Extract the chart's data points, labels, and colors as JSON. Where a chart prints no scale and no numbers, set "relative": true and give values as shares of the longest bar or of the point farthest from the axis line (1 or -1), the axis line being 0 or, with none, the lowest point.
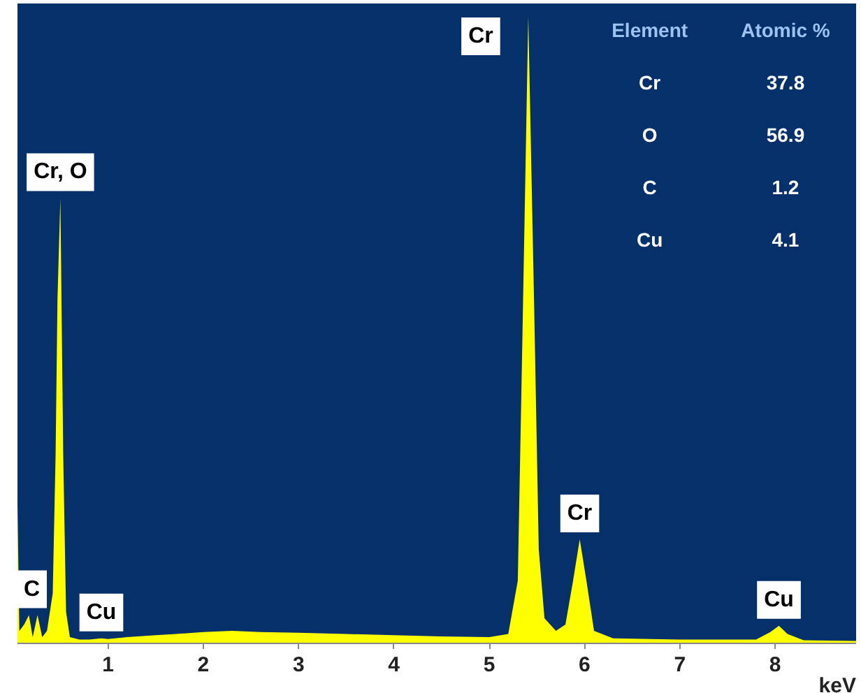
{
  "chart_data": {
    "type": "area",
    "relative": true,
    "xlabel": "keV",
    "color": "#ffff00",
    "x": [
      0.05,
      0.07,
      0.12,
      0.17,
      0.21,
      0.26,
      0.31,
      0.36,
      0.42,
      0.45,
      0.47,
      0.5,
      0.53,
      0.56,
      0.6,
      0.7,
      0.8,
      0.93,
      1.0,
      1.2,
      1.5,
      1.8,
      2.0,
      2.3,
      2.6,
      3.0,
      3.5,
      4.0,
      4.5,
      5.0,
      5.2,
      5.3,
      5.35,
      5.41,
      5.47,
      5.52,
      5.58,
      5.7,
      5.8,
      5.88,
      5.95,
      6.02,
      6.1,
      6.3,
      7.0,
      7.8,
      7.95,
      8.04,
      8.13,
      8.3,
      8.85
    ],
    "values": [
      0.22,
      0.02,
      0.03,
      0.045,
      0.01,
      0.045,
      0.01,
      0.02,
      0.08,
      0.3,
      0.55,
      0.71,
      0.3,
      0.05,
      0.01,
      0.006,
      0.006,
      0.008,
      0.007,
      0.01,
      0.013,
      0.016,
      0.018,
      0.02,
      0.018,
      0.017,
      0.015,
      0.013,
      0.011,
      0.01,
      0.015,
      0.1,
      0.5,
      1.0,
      0.55,
      0.15,
      0.04,
      0.02,
      0.03,
      0.1,
      0.166,
      0.1,
      0.02,
      0.008,
      0.006,
      0.006,
      0.018,
      0.028,
      0.015,
      0.005,
      0.004
    ],
    "xlim": [
      0.05,
      8.85
    ],
    "xticks": [
      1,
      2,
      3,
      4,
      5,
      6,
      7,
      8
    ],
    "grid": false,
    "annotations": [
      {
        "text": "Cr, O",
        "x": 0.5,
        "y": 0.71
      },
      {
        "text": "C",
        "x": 0.2,
        "y": 0.045
      },
      {
        "text": "Cu",
        "x": 0.93,
        "y": 0.008
      },
      {
        "text": "Cr",
        "x": 5.41,
        "y": 1.0
      },
      {
        "text": "Cr",
        "x": 5.95,
        "y": 0.166
      },
      {
        "text": "Cu",
        "x": 8.04,
        "y": 0.028
      },
      "Element",
      "Atomic %",
      "Cr",
      "37.8",
      "O",
      "56.9",
      "C",
      "1.2",
      "Cu",
      "4.1"
    ]
  }
}
